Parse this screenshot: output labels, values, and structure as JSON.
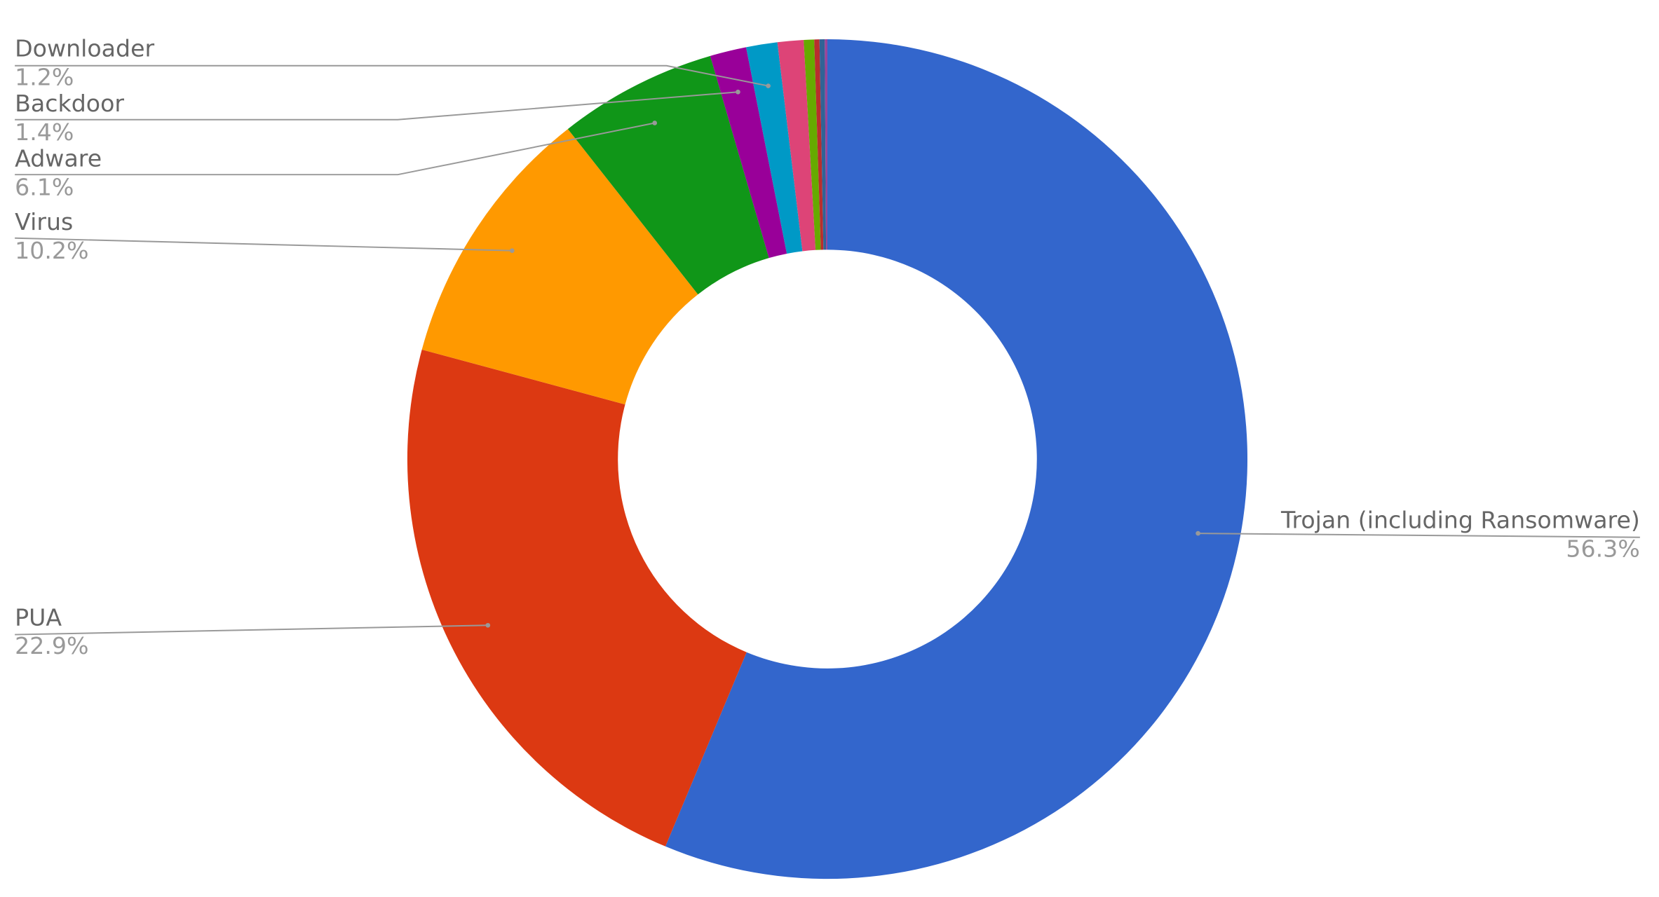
{
  "chart_data": {
    "type": "pie",
    "categories": [
      "Trojan (including Ransomware)",
      "PUA",
      "Virus",
      "Adware",
      "Backdoor",
      "Downloader",
      null,
      null,
      null,
      null,
      null
    ],
    "values": [
      56.3,
      22.9,
      10.2,
      6.1,
      1.4,
      1.2,
      1.0,
      0.4,
      0.2,
      0.2,
      0.1
    ],
    "value_labels": [
      "56.3%",
      "22.9%",
      "10.2%",
      "6.1%",
      "1.4%",
      "1.2%",
      null,
      null,
      null,
      null,
      null
    ],
    "colors": [
      "#3366cc",
      "#dc3912",
      "#ff9900",
      "#109618",
      "#990099",
      "#0099c6",
      "#dd4477",
      "#66aa00",
      "#b82e2e",
      "#316395",
      "#994499"
    ],
    "donut": true
  }
}
